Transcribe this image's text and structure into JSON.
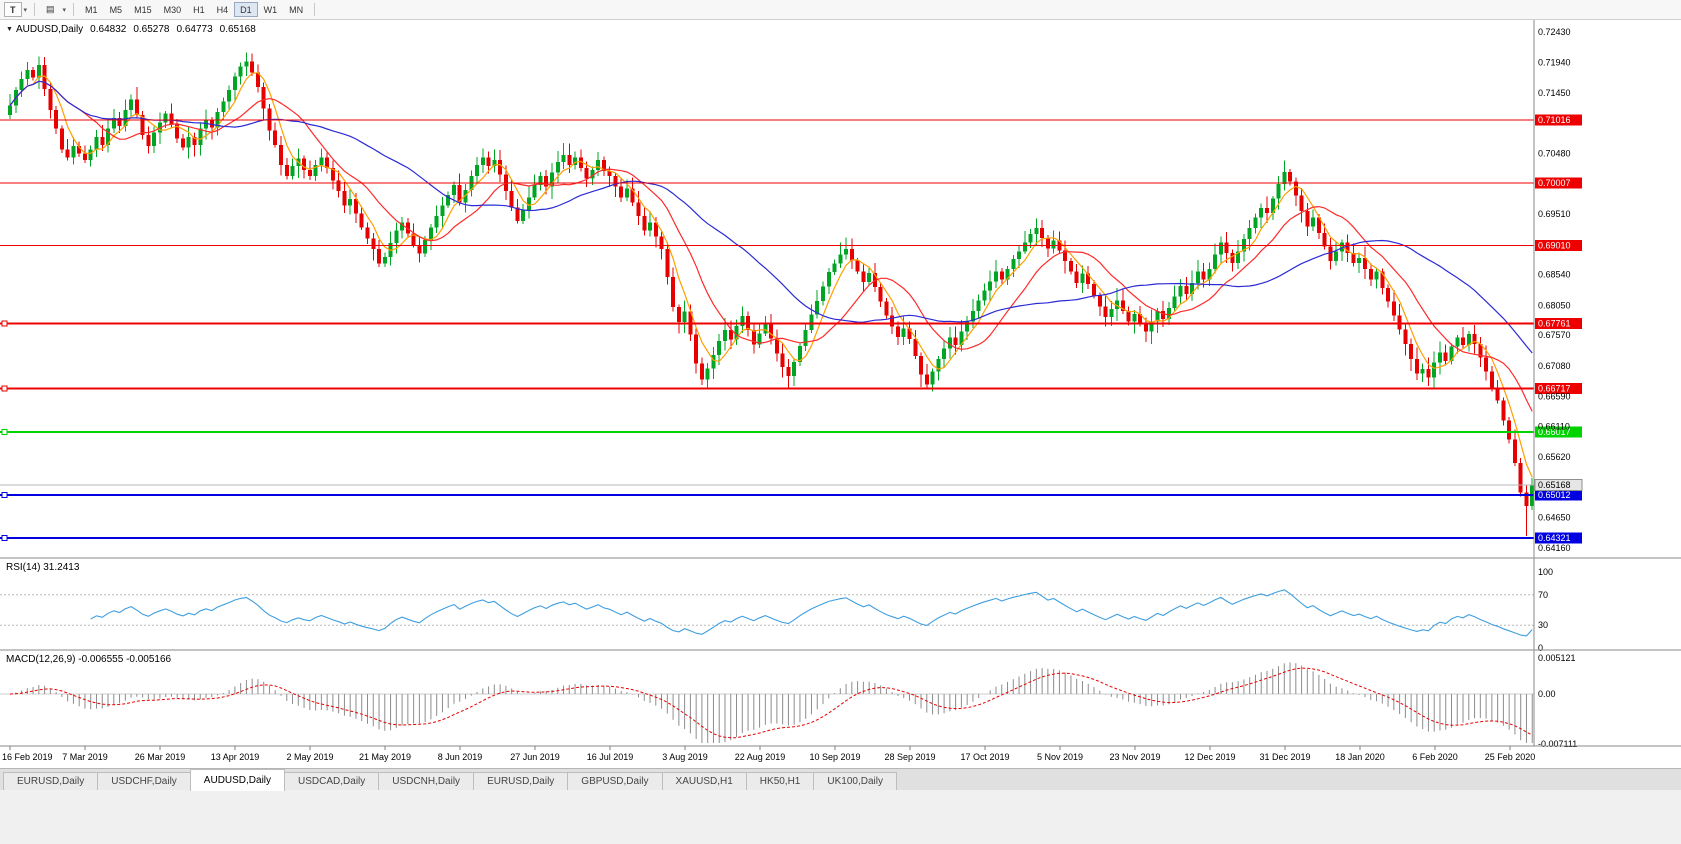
{
  "toolbar": {
    "template_button": "T",
    "dropdown_icon": "▾",
    "objects_icon": "▤",
    "timeframes": [
      "M1",
      "M5",
      "M15",
      "M30",
      "H1",
      "H4",
      "D1",
      "W1",
      "MN"
    ],
    "active_timeframe": "D1"
  },
  "quote": {
    "dropdown_icon": "▼",
    "symbol": "AUDUSD,Daily",
    "open": "0.64832",
    "high": "0.65278",
    "low": "0.64773",
    "close": "0.65168"
  },
  "chart_data": {
    "type": "candlestick",
    "symbol": "AUDUSD",
    "timeframe": "Daily",
    "x_labels": [
      "16 Feb 2019",
      "7 Mar 2019",
      "26 Mar 2019",
      "13 Apr 2019",
      "2 May 2019",
      "21 May 2019",
      "8 Jun 2019",
      "27 Jun 2019",
      "16 Jul 2019",
      "3 Aug 2019",
      "22 Aug 2019",
      "10 Sep 2019",
      "28 Sep 2019",
      "17 Oct 2019",
      "5 Nov 2019",
      "23 Nov 2019",
      "12 Dec 2019",
      "31 Dec 2019",
      "18 Jan 2020",
      "6 Feb 2020",
      "25 Feb 2020"
    ],
    "price_ticks": [
      "0.72430",
      "0.71940",
      "0.71450",
      "0.70960",
      "0.70480",
      "0.69990",
      "0.69510",
      "0.69020",
      "0.68540",
      "0.68050",
      "0.67570",
      "0.67080",
      "0.66590",
      "0.66110",
      "0.65620",
      "0.65130",
      "0.64650",
      "0.64160"
    ],
    "closes": [
      0.7125,
      0.715,
      0.7168,
      0.7182,
      0.717,
      0.719,
      0.7152,
      0.7118,
      0.7088,
      0.7055,
      0.7042,
      0.706,
      0.7048,
      0.7038,
      0.7055,
      0.7075,
      0.7062,
      0.7088,
      0.7105,
      0.7092,
      0.7118,
      0.7135,
      0.711,
      0.7078,
      0.706,
      0.7082,
      0.7098,
      0.7112,
      0.7095,
      0.7072,
      0.7058,
      0.7075,
      0.7062,
      0.7088,
      0.7102,
      0.709,
      0.7115,
      0.7132,
      0.715,
      0.7172,
      0.7188,
      0.7196,
      0.7178,
      0.7155,
      0.712,
      0.7085,
      0.7062,
      0.703,
      0.7012,
      0.7028,
      0.704,
      0.7022,
      0.7012,
      0.703,
      0.7042,
      0.7025,
      0.7005,
      0.6988,
      0.6965,
      0.6975,
      0.6952,
      0.693,
      0.6912,
      0.6895,
      0.6872,
      0.6882,
      0.6905,
      0.6925,
      0.6938,
      0.692,
      0.6902,
      0.6888,
      0.691,
      0.693,
      0.6948,
      0.6965,
      0.6982,
      0.6998,
      0.697,
      0.699,
      0.7012,
      0.703,
      0.7042,
      0.7028,
      0.7038,
      0.7015,
      0.6988,
      0.6962,
      0.694,
      0.6958,
      0.6978,
      0.6998,
      0.7012,
      0.6995,
      0.7018,
      0.7035,
      0.7046,
      0.703,
      0.7042,
      0.7025,
      0.7008,
      0.7022,
      0.7038,
      0.702,
      0.7012,
      0.6995,
      0.6978,
      0.6992,
      0.697,
      0.6948,
      0.6925,
      0.6938,
      0.6915,
      0.6895,
      0.685,
      0.6802,
      0.6778,
      0.6795,
      0.6758,
      0.6712,
      0.6686,
      0.6704,
      0.6725,
      0.6748,
      0.6765,
      0.675,
      0.6772,
      0.6788,
      0.6765,
      0.6742,
      0.676,
      0.6775,
      0.6752,
      0.6728,
      0.6706,
      0.6692,
      0.6714,
      0.674,
      0.6765,
      0.679,
      0.6812,
      0.6835,
      0.6858,
      0.6872,
      0.6886,
      0.6895,
      0.6877,
      0.6859,
      0.6842,
      0.6857,
      0.6834,
      0.6811,
      0.6789,
      0.6771,
      0.6754,
      0.6768,
      0.6751,
      0.6724,
      0.6694,
      0.6678,
      0.6699,
      0.6719,
      0.6736,
      0.6753,
      0.6741,
      0.6763,
      0.6779,
      0.6796,
      0.6813,
      0.6829,
      0.6843,
      0.6859,
      0.6846,
      0.6863,
      0.6879,
      0.6891,
      0.6906,
      0.6919,
      0.6929,
      0.6913,
      0.6896,
      0.6909,
      0.6893,
      0.6876,
      0.6859,
      0.6841,
      0.6856,
      0.6839,
      0.6821,
      0.6803,
      0.6786,
      0.6799,
      0.6813,
      0.6796,
      0.6779,
      0.6791,
      0.6776,
      0.6763,
      0.6779,
      0.6796,
      0.6783,
      0.6801,
      0.6819,
      0.6836,
      0.6823,
      0.6841,
      0.6859,
      0.6846,
      0.6863,
      0.6886,
      0.6906,
      0.6889,
      0.6873,
      0.6891,
      0.6911,
      0.6929,
      0.6946,
      0.6961,
      0.6953,
      0.6976,
      0.6999,
      0.7019,
      0.7003,
      0.6981,
      0.6956,
      0.6931,
      0.6946,
      0.6921,
      0.6899,
      0.6876,
      0.6891,
      0.6906,
      0.6889,
      0.6873,
      0.6881,
      0.6863,
      0.6846,
      0.6859,
      0.6833,
      0.6811,
      0.6789,
      0.6766,
      0.6743,
      0.6719,
      0.6696,
      0.6703,
      0.6689,
      0.6713,
      0.6729,
      0.6716,
      0.6739,
      0.6753,
      0.6741,
      0.6759,
      0.6743,
      0.6721,
      0.6699,
      0.6673,
      0.6652,
      0.662,
      0.659,
      0.6552,
      0.6505,
      0.64832,
      0.65168
    ],
    "wick_overrides": {
      "120": {
        "low": 0.6677
      },
      "159": {
        "low": 0.667
      },
      "263": {
        "low": 0.6435
      },
      "264": {
        "high": 0.65278,
        "low": 0.64773
      }
    },
    "levels": [
      {
        "price": 0.71016,
        "label": "0.71016",
        "color": "#ee0000",
        "width": 1
      },
      {
        "price": 0.70007,
        "label": "0.70007",
        "color": "#ee0000",
        "width": 1
      },
      {
        "price": 0.6901,
        "label": "0.69010",
        "color": "#ee0000",
        "width": 1
      },
      {
        "price": 0.67761,
        "label": "0.67761",
        "color": "#ee0000",
        "width": 2
      },
      {
        "price": 0.66717,
        "label": "0.66717",
        "color": "#ee0000",
        "width": 2
      },
      {
        "price": 0.66017,
        "label": "0.66017",
        "color": "#00d300",
        "width": 2
      },
      {
        "price": 0.65012,
        "label": "0.65012",
        "color": "#0000e0",
        "width": 2
      },
      {
        "price": 0.64321,
        "label": "0.64321",
        "color": "#0000e0",
        "width": 2
      }
    ],
    "current_price": {
      "price": 0.65168,
      "label": "0.65168"
    },
    "moving_averages": [
      {
        "period": 5,
        "color": "#ff9f00"
      },
      {
        "period": 13,
        "color": "#ff2a2a"
      },
      {
        "period": 34,
        "color": "#2b2bd5"
      }
    ],
    "colors": {
      "up": "#00a524",
      "down": "#e60000",
      "bid_line": "#b4b4b4",
      "hist": "#8c8c8c"
    },
    "indicators": {
      "rsi": {
        "label": "RSI(14) 31.2413",
        "period": 14,
        "value": 31.2413,
        "levels": [
          70,
          30
        ],
        "ticks": [
          "100",
          "70",
          "30",
          "0"
        ],
        "line_color": "#3f9fe0"
      },
      "macd": {
        "label": "MACD(12,26,9) -0.006555 -0.005166",
        "fast": 12,
        "slow": 26,
        "signal": 9,
        "macd_value": -0.006555,
        "signal_value": -0.005166,
        "ticks": [
          "0.005121",
          "0.00",
          "-0.007111"
        ],
        "signal_color": "#e60000"
      }
    }
  },
  "tabs": {
    "items": [
      {
        "label": "EURUSD,Daily",
        "active": false
      },
      {
        "label": "USDCHF,Daily",
        "active": false
      },
      {
        "label": "AUDUSD,Daily",
        "active": true
      },
      {
        "label": "USDCAD,Daily",
        "active": false
      },
      {
        "label": "USDCNH,Daily",
        "active": false
      },
      {
        "label": "EURUSD,Daily",
        "active": false
      },
      {
        "label": "GBPUSD,Daily",
        "active": false
      },
      {
        "label": "XAUUSD,H1",
        "active": false
      },
      {
        "label": "HK50,H1",
        "active": false
      },
      {
        "label": "UK100,Daily",
        "active": false
      }
    ]
  }
}
